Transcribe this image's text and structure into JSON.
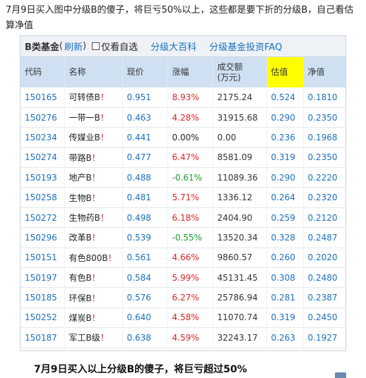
{
  "intro_text": "7月9日买入图中分级B的傻子，将巨亏50%以上，这些都是要下折的分级B，自己看估算净值",
  "toolbar": {
    "title": "B类基金",
    "paren_open": "(",
    "refresh": "刷新",
    "paren_close": ")",
    "checkbox_label": "仅看自选",
    "link1": "分级大百科",
    "link2": "分级基金投资FAQ"
  },
  "columns": [
    "代码",
    "名称",
    "现价",
    "涨幅",
    "成交额\n(万元)",
    "估值",
    "净值"
  ],
  "rows": [
    {
      "code": "150165",
      "name": "可转债B",
      "mark": "！",
      "price": "0.951",
      "change": "8.93%",
      "dir": "up",
      "volume": "2175.24",
      "estimate": "0.524",
      "nav": "0.1810"
    },
    {
      "code": "150276",
      "name": "一带一B",
      "mark": "！",
      "price": "0.463",
      "change": "4.28%",
      "dir": "up",
      "volume": "31915.68",
      "estimate": "0.290",
      "nav": "0.2350"
    },
    {
      "code": "150234",
      "name": "传媒业B",
      "mark": "！",
      "price": "0.441",
      "change": "0.00%",
      "dir": "flat",
      "volume": "0.00",
      "estimate": "0.236",
      "nav": "0.1968"
    },
    {
      "code": "150274",
      "name": "带路B",
      "mark": "！",
      "price": "0.477",
      "change": "6.47%",
      "dir": "up",
      "volume": "8581.09",
      "estimate": "0.319",
      "nav": "0.2350"
    },
    {
      "code": "150193",
      "name": "地产B",
      "mark": "！",
      "price": "0.488",
      "change": "-0.61%",
      "dir": "down",
      "volume": "11089.36",
      "estimate": "0.290",
      "nav": "0.2220"
    },
    {
      "code": "150258",
      "name": "生物B",
      "mark": "！",
      "price": "0.481",
      "change": "5.71%",
      "dir": "up",
      "volume": "1336.12",
      "estimate": "0.264",
      "nav": "0.2320"
    },
    {
      "code": "150272",
      "name": "生物药B",
      "mark": "！",
      "price": "0.498",
      "change": "6.18%",
      "dir": "up",
      "volume": "2404.90",
      "estimate": "0.259",
      "nav": "0.2120"
    },
    {
      "code": "150296",
      "name": "改革B",
      "mark": "！",
      "price": "0.539",
      "change": "-0.55%",
      "dir": "down",
      "volume": "13520.34",
      "estimate": "0.328",
      "nav": "0.2487"
    },
    {
      "code": "150151",
      "name": "有色800B",
      "mark": "！",
      "price": "0.561",
      "change": "4.66%",
      "dir": "up",
      "volume": "9860.57",
      "estimate": "0.260",
      "nav": "0.2020"
    },
    {
      "code": "150197",
      "name": "有色B",
      "mark": "！",
      "price": "0.584",
      "change": "5.99%",
      "dir": "up",
      "volume": "45131.45",
      "estimate": "0.308",
      "nav": "0.2480"
    },
    {
      "code": "150185",
      "name": "环保B",
      "mark": "！",
      "price": "0.576",
      "change": "6.27%",
      "dir": "up",
      "volume": "25786.94",
      "estimate": "0.281",
      "nav": "0.2387"
    },
    {
      "code": "150252",
      "name": "煤炭B",
      "mark": "！",
      "price": "0.640",
      "change": "4.58%",
      "dir": "up",
      "volume": "11070.74",
      "estimate": "0.319",
      "nav": "0.2450"
    },
    {
      "code": "150187",
      "name": "军工B级",
      "mark": "！",
      "price": "0.638",
      "change": "4.59%",
      "dir": "up",
      "volume": "32243.17",
      "estimate": "0.263",
      "nav": "0.1927"
    }
  ],
  "caption": "7月9日买入以上分级B的傻子，将巨亏超过50%",
  "colors": {
    "up": "#e02020",
    "down": "#1a9a2a",
    "link": "#1a6fc0",
    "header_bg": "#cfe0f2",
    "highlight": "#ffff00"
  }
}
